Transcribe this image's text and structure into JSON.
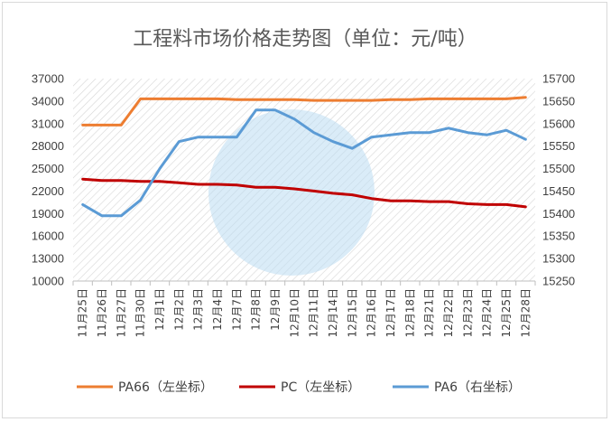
{
  "chart_data": {
    "type": "line",
    "title": "工程料市场价格走势图（单位：元/吨）",
    "categories": [
      "11月25日",
      "11月26日",
      "11月27日",
      "11月30日",
      "12月1日",
      "12月2日",
      "12月3日",
      "12月4日",
      "12月7日",
      "12月8日",
      "12月9日",
      "12月10日",
      "12月11日",
      "12月14日",
      "12月15日",
      "12月16日",
      "12月17日",
      "12月18日",
      "12月21日",
      "12月22日",
      "12月23日",
      "12月24日",
      "12月25日",
      "12月28日"
    ],
    "y_left": {
      "ylim": [
        10000,
        37000
      ],
      "ticks": [
        10000,
        13000,
        16000,
        19000,
        22000,
        25000,
        28000,
        31000,
        34000,
        37000
      ]
    },
    "y_right": {
      "ylim": [
        15250,
        15700
      ],
      "ticks": [
        15250,
        15300,
        15350,
        15400,
        15450,
        15500,
        15550,
        15600,
        15650,
        15700
      ]
    },
    "grid": false,
    "legend_position": "bottom",
    "series": [
      {
        "name": "PA66（左坐标）",
        "axis": "left",
        "color": "#ED7D31",
        "values": [
          30800,
          30800,
          30800,
          34300,
          34300,
          34300,
          34300,
          34300,
          34200,
          34200,
          34200,
          34200,
          34100,
          34100,
          34100,
          34100,
          34200,
          34200,
          34300,
          34300,
          34300,
          34300,
          34300,
          34500
        ]
      },
      {
        "name": "PC（左坐标）",
        "axis": "left",
        "color": "#C00000",
        "values": [
          23600,
          23400,
          23400,
          23300,
          23300,
          23100,
          22900,
          22900,
          22800,
          22500,
          22500,
          22300,
          22000,
          21700,
          21500,
          21000,
          20700,
          20700,
          20600,
          20600,
          20300,
          20200,
          20200,
          19900
        ]
      },
      {
        "name": "PA6（右坐标）",
        "axis": "right",
        "color": "#5B9BD5",
        "values": [
          15420,
          15395,
          15395,
          15430,
          15500,
          15560,
          15570,
          15570,
          15570,
          15630,
          15630,
          15610,
          15580,
          15560,
          15545,
          15570,
          15575,
          15580,
          15580,
          15590,
          15580,
          15575,
          15585,
          15565
        ]
      }
    ]
  }
}
